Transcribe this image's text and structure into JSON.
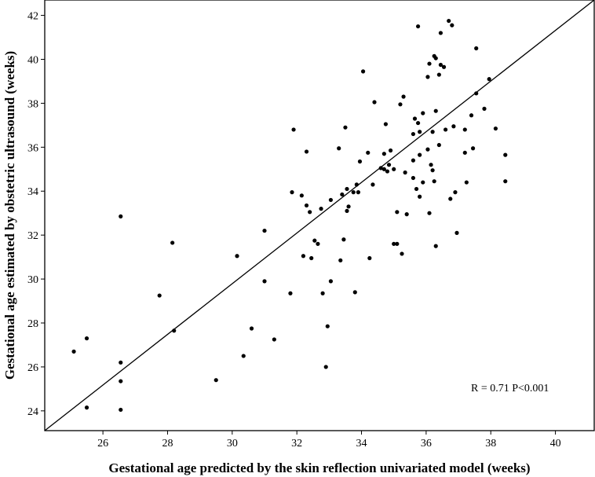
{
  "chart_data": {
    "type": "scatter",
    "title": "",
    "xlabel": "Gestational age predicted by the skin reflection univariated model (weeks)",
    "ylabel": "Gestational age estimated by obstetric ultrasound (weeks)",
    "xlim": [
      24.2,
      41.2
    ],
    "ylim": [
      23.1,
      42.7
    ],
    "x_ticks": [
      "26",
      "28",
      "30",
      "32",
      "34",
      "36",
      "38",
      "40"
    ],
    "y_ticks": [
      "24",
      "26",
      "28",
      "30",
      "32",
      "34",
      "36",
      "38",
      "40",
      "42"
    ],
    "annotation": "R = 0.71  P<0.001",
    "reference_line": {
      "from": [
        24.2,
        23.1
      ],
      "to": [
        41.2,
        42.7
      ]
    },
    "grid": false,
    "points": [
      [
        25.1,
        26.7
      ],
      [
        25.5,
        27.3
      ],
      [
        25.5,
        24.15
      ],
      [
        26.55,
        32.85
      ],
      [
        26.55,
        26.2
      ],
      [
        26.55,
        25.35
      ],
      [
        26.55,
        24.05
      ],
      [
        27.75,
        29.25
      ],
      [
        28.15,
        31.65
      ],
      [
        28.2,
        27.65
      ],
      [
        29.5,
        25.4
      ],
      [
        30.15,
        31.05
      ],
      [
        30.35,
        26.5
      ],
      [
        30.6,
        27.75
      ],
      [
        31.0,
        32.2
      ],
      [
        31.0,
        29.9
      ],
      [
        31.3,
        27.25
      ],
      [
        31.8,
        29.35
      ],
      [
        31.85,
        33.95
      ],
      [
        31.9,
        36.8
      ],
      [
        32.15,
        33.8
      ],
      [
        32.2,
        31.05
      ],
      [
        32.3,
        35.8
      ],
      [
        32.3,
        33.35
      ],
      [
        32.4,
        33.05
      ],
      [
        32.45,
        30.95
      ],
      [
        32.55,
        31.75
      ],
      [
        32.65,
        31.6
      ],
      [
        32.75,
        33.2
      ],
      [
        32.8,
        29.35
      ],
      [
        32.9,
        26.0
      ],
      [
        32.95,
        27.85
      ],
      [
        33.05,
        33.6
      ],
      [
        33.05,
        29.9
      ],
      [
        33.3,
        35.95
      ],
      [
        33.35,
        30.85
      ],
      [
        33.4,
        33.85
      ],
      [
        33.45,
        31.8
      ],
      [
        33.5,
        36.9
      ],
      [
        33.55,
        33.1
      ],
      [
        33.55,
        34.1
      ],
      [
        33.6,
        33.3
      ],
      [
        33.75,
        33.95
      ],
      [
        33.8,
        29.4
      ],
      [
        33.85,
        34.3
      ],
      [
        33.9,
        33.95
      ],
      [
        33.95,
        35.35
      ],
      [
        34.05,
        39.45
      ],
      [
        34.2,
        35.75
      ],
      [
        34.25,
        30.95
      ],
      [
        34.35,
        34.3
      ],
      [
        34.4,
        38.05
      ],
      [
        34.6,
        35.05
      ],
      [
        34.7,
        35.7
      ],
      [
        34.7,
        35.0
      ],
      [
        34.75,
        37.05
      ],
      [
        34.8,
        34.9
      ],
      [
        34.85,
        35.2
      ],
      [
        34.9,
        35.85
      ],
      [
        35.0,
        35.0
      ],
      [
        35.0,
        31.6
      ],
      [
        35.1,
        31.6
      ],
      [
        35.1,
        33.05
      ],
      [
        35.2,
        37.95
      ],
      [
        35.25,
        31.15
      ],
      [
        35.3,
        38.3
      ],
      [
        35.35,
        34.85
      ],
      [
        35.4,
        32.95
      ],
      [
        35.6,
        36.6
      ],
      [
        35.6,
        35.4
      ],
      [
        35.6,
        34.6
      ],
      [
        35.65,
        37.3
      ],
      [
        35.7,
        34.1
      ],
      [
        35.75,
        37.1
      ],
      [
        35.75,
        41.5
      ],
      [
        35.8,
        35.65
      ],
      [
        35.8,
        33.75
      ],
      [
        35.8,
        36.7
      ],
      [
        35.9,
        37.55
      ],
      [
        35.9,
        34.4
      ],
      [
        36.05,
        39.2
      ],
      [
        36.05,
        35.9
      ],
      [
        36.1,
        39.8
      ],
      [
        36.1,
        33.0
      ],
      [
        36.15,
        35.2
      ],
      [
        36.2,
        34.95
      ],
      [
        36.2,
        36.7
      ],
      [
        36.25,
        34.45
      ],
      [
        36.25,
        40.15
      ],
      [
        36.3,
        37.65
      ],
      [
        36.3,
        40.05
      ],
      [
        36.3,
        31.5
      ],
      [
        36.4,
        39.3
      ],
      [
        36.4,
        36.1
      ],
      [
        36.45,
        39.75
      ],
      [
        36.45,
        41.2
      ],
      [
        36.55,
        39.65
      ],
      [
        36.6,
        36.8
      ],
      [
        36.7,
        41.75
      ],
      [
        36.8,
        41.55
      ],
      [
        36.75,
        33.65
      ],
      [
        36.85,
        36.95
      ],
      [
        36.9,
        33.95
      ],
      [
        36.95,
        32.1
      ],
      [
        37.2,
        36.8
      ],
      [
        37.2,
        35.75
      ],
      [
        37.25,
        34.4
      ],
      [
        37.4,
        37.45
      ],
      [
        37.45,
        35.95
      ],
      [
        37.55,
        38.45
      ],
      [
        37.55,
        40.5
      ],
      [
        37.8,
        37.75
      ],
      [
        37.95,
        39.1
      ],
      [
        38.15,
        36.85
      ],
      [
        38.45,
        35.65
      ],
      [
        38.45,
        34.45
      ]
    ]
  }
}
